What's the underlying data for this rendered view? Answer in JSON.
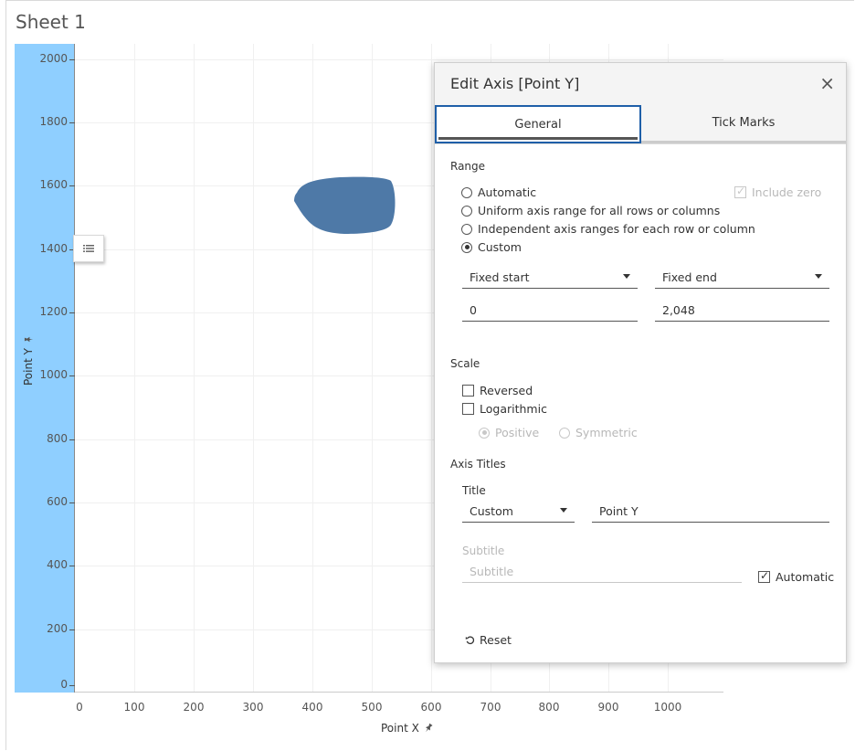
{
  "sheet": {
    "title": "Sheet 1"
  },
  "colors": {
    "y_band": "#8fcfff",
    "mark": "#4e79a7",
    "accent": "#1f5fa8"
  },
  "icons": {
    "pin": "pin-icon",
    "menu": "list-icon",
    "close": "close-icon",
    "reset": "reset-icon"
  },
  "axes": {
    "y_title": "Point Y",
    "x_title": "Point X",
    "y_ticks": [
      "2000",
      "1800",
      "1600",
      "1400",
      "1200",
      "1000",
      "800",
      "600",
      "400",
      "200",
      "0"
    ],
    "x_ticks": [
      "0",
      "100",
      "200",
      "300",
      "400",
      "500",
      "600",
      "700",
      "800",
      "900",
      "1000"
    ]
  },
  "dialog": {
    "title": "Edit Axis [Point Y]",
    "close_symbol": "×",
    "tabs": [
      "General",
      "Tick Marks"
    ],
    "range": {
      "label": "Range",
      "options": [
        "Automatic",
        "Uniform axis range for all rows or columns",
        "Independent axis ranges for each row or column",
        "Custom"
      ],
      "selected": "Custom",
      "include_zero": "Include zero",
      "start_mode": "Fixed start",
      "end_mode": "Fixed end",
      "start_value": "0",
      "end_value": "2,048"
    },
    "scale": {
      "label": "Scale",
      "reversed": "Reversed",
      "logarithmic": "Logarithmic",
      "positive": "Positive",
      "symmetric": "Symmetric"
    },
    "axis_titles": {
      "label": "Axis Titles",
      "title_label": "Title",
      "title_mode": "Custom",
      "title_value": "Point Y",
      "subtitle_label": "Subtitle",
      "subtitle_placeholder": "Subtitle",
      "automatic": "Automatic"
    },
    "reset": "Reset"
  }
}
